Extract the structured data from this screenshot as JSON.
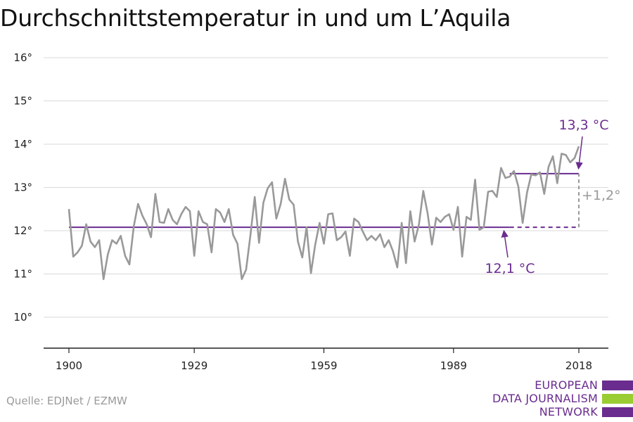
{
  "title": "Durchschnittstemperatur in und um L’Aquila",
  "source": "Quelle: EDJNet / EZMW",
  "logo": {
    "lines": [
      "EUROPEAN",
      "DATA JOURNALISM",
      "NETWORK"
    ],
    "colors": {
      "purple": "#6a2c8f",
      "green": "#9acd32"
    }
  },
  "colors": {
    "series": "#999999",
    "baseline": "#6a2c8f",
    "delta": "#999999",
    "grid": "#d9d9d9",
    "axis": "#222222"
  },
  "chart_data": {
    "type": "line",
    "title": "Durchschnittstemperatur in und um L’Aquila",
    "xlabel": "",
    "ylabel": "",
    "xlim": [
      1900,
      2018
    ],
    "ylim": [
      9.3,
      16.3
    ],
    "yticks": [
      10,
      11,
      12,
      13,
      14,
      15,
      16
    ],
    "ytick_labels": [
      "10°",
      "11°",
      "12°",
      "13°",
      "14°",
      "15°",
      "16°"
    ],
    "xticks": [
      1900,
      1929,
      1959,
      1989,
      2018
    ],
    "xtick_labels": [
      "1900",
      "1929",
      "1959",
      "1989",
      "2018"
    ],
    "grid": true,
    "series": [
      {
        "x": [
          1900,
          1901,
          1902,
          1903,
          1904,
          1905,
          1906,
          1907,
          1908,
          1909,
          1910,
          1911,
          1912,
          1913,
          1914,
          1915,
          1916,
          1917,
          1918,
          1919,
          1920,
          1921,
          1922,
          1923,
          1924,
          1925,
          1926,
          1927,
          1928,
          1929,
          1930,
          1931,
          1932,
          1933,
          1934,
          1935,
          1936,
          1937,
          1938,
          1939,
          1940,
          1941,
          1942,
          1943,
          1944,
          1945,
          1946,
          1947,
          1948,
          1949,
          1950,
          1951,
          1952,
          1953,
          1954,
          1955,
          1956,
          1957,
          1958,
          1959,
          1960,
          1961,
          1962,
          1963,
          1964,
          1965,
          1966,
          1967,
          1968,
          1969,
          1970,
          1971,
          1972,
          1973,
          1974,
          1975,
          1976,
          1977,
          1978,
          1979,
          1980,
          1981,
          1982,
          1983,
          1984,
          1985,
          1986,
          1987,
          1988,
          1989,
          1990,
          1991,
          1992,
          1993,
          1994,
          1995,
          1996,
          1997,
          1998,
          1999,
          2000,
          2001,
          2002,
          2003,
          2004,
          2005,
          2006,
          2007,
          2008,
          2009,
          2010,
          2011,
          2012,
          2013,
          2014,
          2015,
          2016,
          2017,
          2018
        ],
        "values": [
          12.5,
          11.4,
          11.5,
          11.65,
          12.15,
          11.75,
          11.62,
          11.78,
          10.88,
          11.45,
          11.78,
          11.7,
          11.88,
          11.42,
          11.22,
          12.1,
          12.62,
          12.35,
          12.15,
          11.85,
          12.85,
          12.2,
          12.18,
          12.5,
          12.25,
          12.15,
          12.38,
          12.55,
          12.45,
          11.42,
          12.45,
          12.2,
          12.15,
          11.5,
          12.5,
          12.42,
          12.2,
          12.5,
          11.9,
          11.7,
          10.88,
          11.1,
          11.9,
          12.78,
          11.72,
          12.65,
          12.98,
          13.12,
          12.28,
          12.62,
          13.2,
          12.72,
          12.6,
          11.75,
          11.38,
          12.08,
          11.02,
          11.68,
          12.18,
          11.7,
          12.38,
          12.4,
          11.78,
          11.85,
          11.98,
          11.42,
          12.28,
          12.2,
          11.98,
          11.78,
          11.88,
          11.78,
          11.92,
          11.62,
          11.78,
          11.52,
          11.15,
          12.18,
          11.25,
          12.45,
          11.75,
          12.15,
          12.92,
          12.4,
          11.68,
          12.3,
          12.2,
          12.32,
          12.38,
          12.02,
          12.55,
          11.4,
          12.32,
          12.25,
          13.18,
          12.02,
          12.08,
          12.9,
          12.92,
          12.78,
          13.45,
          13.22,
          13.25,
          13.38,
          13.02,
          12.18,
          12.88,
          13.3,
          13.28,
          13.35,
          12.85,
          13.48,
          13.72,
          13.1,
          13.78,
          13.75,
          13.58,
          13.68,
          13.95
        ]
      }
    ],
    "reference_lines": [
      {
        "label": "12,1 °C",
        "value": 12.08,
        "from": 1900,
        "to": 2002,
        "dashed_to": 2018
      },
      {
        "label": "13,3 °C",
        "value": 13.32,
        "from": 2002,
        "to": 2018
      }
    ],
    "annotations": [
      {
        "text": "13,3 °C"
      },
      {
        "text": "12,1 °C"
      },
      {
        "text": "+1,2°"
      }
    ]
  }
}
